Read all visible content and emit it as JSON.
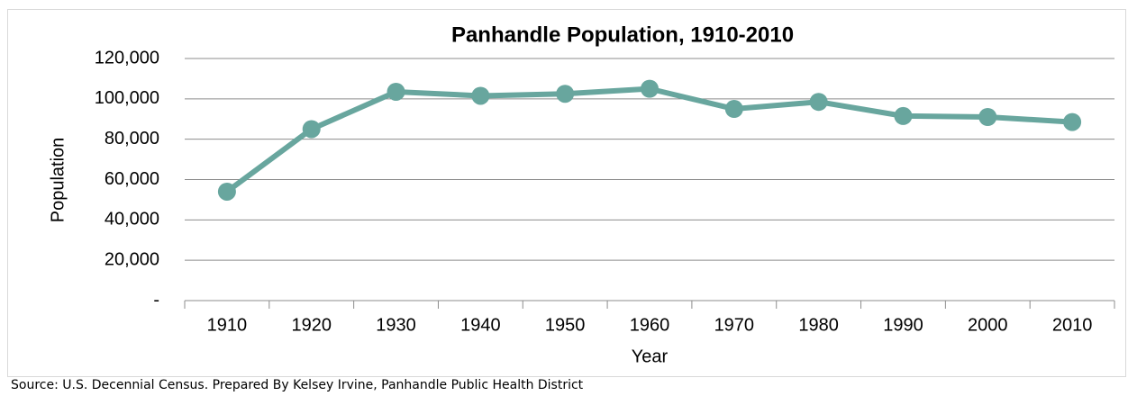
{
  "chart_data": {
    "type": "line",
    "title": "Panhandle Population, 1910-2010",
    "x_label": "Year",
    "y_label": "Population",
    "source": "Source: U.S. Decennial Census. Prepared By Kelsey Irvine, Panhandle Public Health District",
    "categories": [
      "1910",
      "1920",
      "1930",
      "1940",
      "1950",
      "1960",
      "1970",
      "1980",
      "1990",
      "2000",
      "2010"
    ],
    "series": [
      {
        "name": "Population",
        "color": "#68a69e",
        "values": [
          54000,
          85000,
          103500,
          101500,
          102500,
          105000,
          95000,
          98500,
          91500,
          91000,
          88500
        ]
      }
    ],
    "ylim": [
      0,
      120000
    ],
    "yticks": [
      {
        "value": 0,
        "label": "-"
      },
      {
        "value": 20000,
        "label": "20,000"
      },
      {
        "value": 40000,
        "label": "40,000"
      },
      {
        "value": 60000,
        "label": "60,000"
      },
      {
        "value": 80000,
        "label": "80,000"
      },
      {
        "value": 100000,
        "label": "100,000"
      },
      {
        "value": 120000,
        "label": "120,000"
      }
    ],
    "grid": true
  }
}
